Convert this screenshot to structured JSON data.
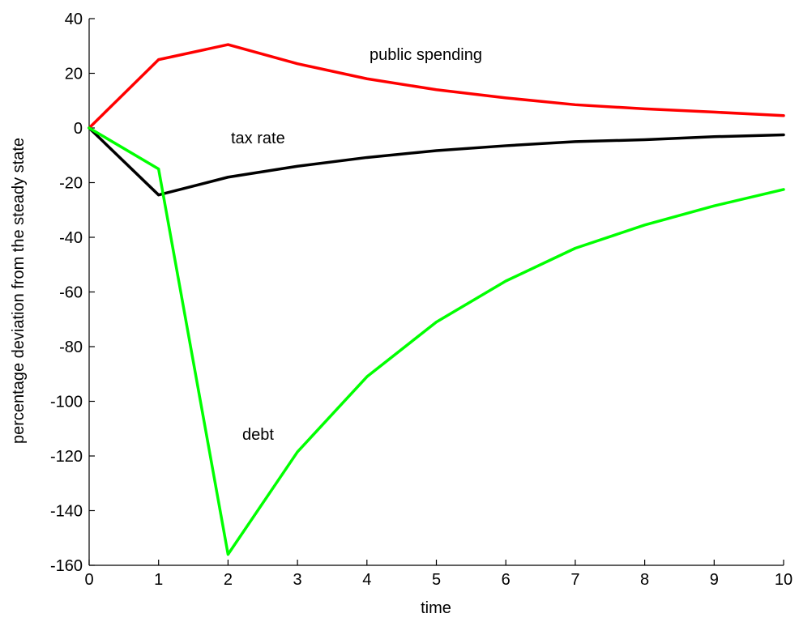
{
  "chart_data": {
    "type": "line",
    "title": "",
    "xlabel": "time",
    "ylabel": "percentage deviation from the steady state",
    "xlim": [
      0,
      10
    ],
    "ylim": [
      -160,
      40
    ],
    "x_ticks": [
      0,
      1,
      2,
      3,
      4,
      5,
      6,
      7,
      8,
      9,
      10
    ],
    "y_ticks": [
      40,
      20,
      0,
      -20,
      -40,
      -60,
      -80,
      -100,
      -120,
      -140,
      -160
    ],
    "grid": false,
    "x": [
      0,
      1,
      2,
      3,
      4,
      5,
      6,
      7,
      8,
      9,
      10
    ],
    "series": [
      {
        "id": "public-spending",
        "color": "#ff0000",
        "values": [
          0,
          25,
          30.5,
          23.5,
          18,
          14,
          11,
          8.5,
          7,
          5.8,
          4.5
        ]
      },
      {
        "id": "tax-rate",
        "color": "#000000",
        "values": [
          0,
          -24.5,
          -18,
          -14,
          -10.8,
          -8.3,
          -6.5,
          -5,
          -4.3,
          -3.2,
          -2.5
        ]
      },
      {
        "id": "debt",
        "color": "#00ff00",
        "values": [
          0,
          -15,
          -156,
          -118.5,
          -91,
          -71,
          -56,
          -44,
          -35.5,
          -28.5,
          -22.5
        ]
      }
    ],
    "annotations": [
      {
        "text": "public spending",
        "series": "public-spending"
      },
      {
        "text": "tax rate",
        "series": "tax-rate"
      },
      {
        "text": "debt",
        "series": "debt"
      }
    ]
  }
}
